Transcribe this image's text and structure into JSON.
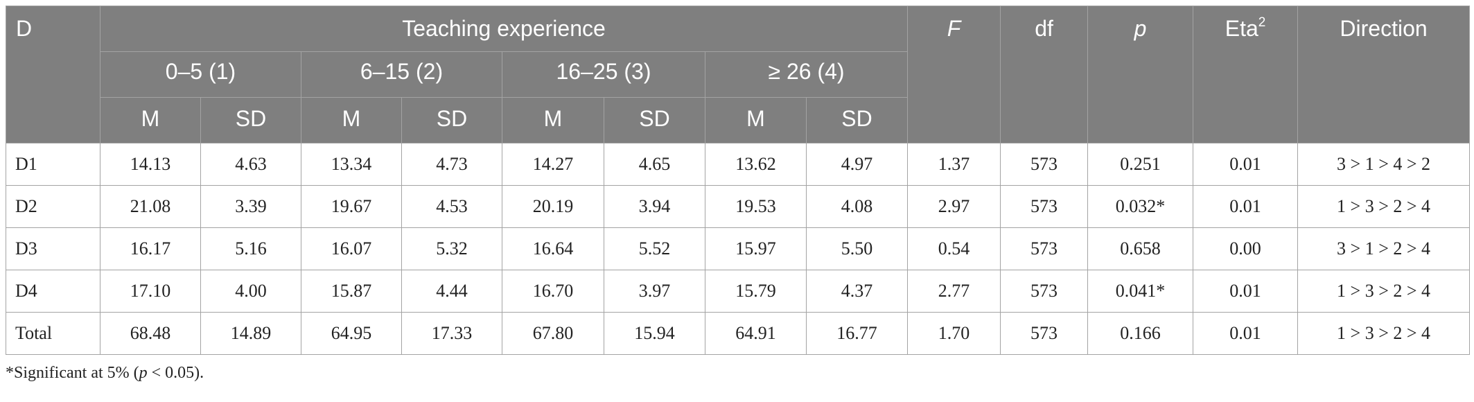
{
  "table": {
    "corner_label": "D",
    "group_label": "Teaching experience",
    "experience_groups": [
      "0–5 (1)",
      "6–15 (2)",
      "16–25 (3)",
      "≥ 26 (4)"
    ],
    "sub_headers": {
      "mean": "M",
      "sd": "SD"
    },
    "stat_headers": {
      "f": "F",
      "df": "df",
      "p": "p",
      "eta_base": "Eta",
      "eta_sup": "2",
      "direction": "Direction"
    },
    "rows": [
      {
        "label": "D1",
        "values": [
          "14.13",
          "4.63",
          "13.34",
          "4.73",
          "14.27",
          "4.65",
          "13.62",
          "4.97"
        ],
        "f": "1.37",
        "df": "573",
        "p": "0.251",
        "eta": "0.01",
        "direction": "3 > 1 > 4 > 2"
      },
      {
        "label": "D2",
        "values": [
          "21.08",
          "3.39",
          "19.67",
          "4.53",
          "20.19",
          "3.94",
          "19.53",
          "4.08"
        ],
        "f": "2.97",
        "df": "573",
        "p": "0.032*",
        "eta": "0.01",
        "direction": "1 > 3 > 2 > 4"
      },
      {
        "label": "D3",
        "values": [
          "16.17",
          "5.16",
          "16.07",
          "5.32",
          "16.64",
          "5.52",
          "15.97",
          "5.50"
        ],
        "f": "0.54",
        "df": "573",
        "p": "0.658",
        "eta": "0.00",
        "direction": "3 > 1 > 2 > 4"
      },
      {
        "label": "D4",
        "values": [
          "17.10",
          "4.00",
          "15.87",
          "4.44",
          "16.70",
          "3.97",
          "15.79",
          "4.37"
        ],
        "f": "2.77",
        "df": "573",
        "p": "0.041*",
        "eta": "0.01",
        "direction": "1 > 3 > 2 > 4"
      },
      {
        "label": "Total",
        "values": [
          "68.48",
          "14.89",
          "64.95",
          "17.33",
          "67.80",
          "15.94",
          "64.91",
          "16.77"
        ],
        "f": "1.70",
        "df": "573",
        "p": "0.166",
        "eta": "0.01",
        "direction": "1 > 3 > 2 > 4"
      }
    ]
  },
  "footnote": {
    "prefix": "*Significant at 5% (",
    "p_symbol": "p",
    "suffix": " < 0.05)."
  }
}
